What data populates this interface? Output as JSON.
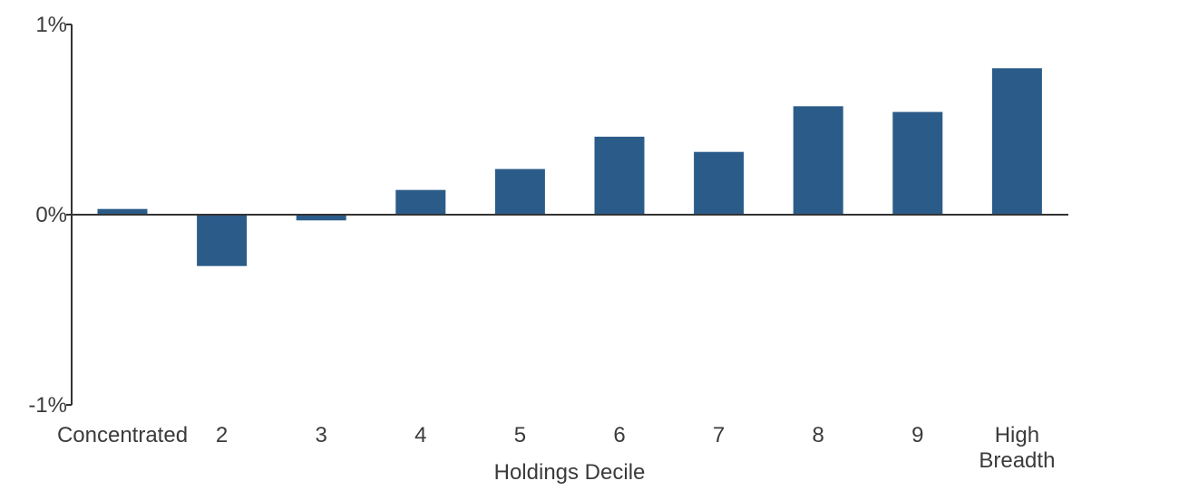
{
  "chart_data": {
    "type": "bar",
    "title": "",
    "xlabel": "Holdings Decile",
    "ylabel": "",
    "categories": [
      [
        "Concentrated"
      ],
      [
        "2"
      ],
      [
        "3"
      ],
      [
        "4"
      ],
      [
        "5"
      ],
      [
        "6"
      ],
      [
        "7"
      ],
      [
        "8"
      ],
      [
        "9"
      ],
      [
        "High",
        "Breadth"
      ]
    ],
    "values": [
      0.03,
      -0.27,
      -0.03,
      0.13,
      0.24,
      0.41,
      0.33,
      0.57,
      0.54,
      0.77
    ],
    "ylim": [
      -1,
      1
    ],
    "yticks": [
      {
        "value": 1,
        "label": "1%"
      },
      {
        "value": 0,
        "label": "0%"
      },
      {
        "value": -1,
        "label": "-1%"
      }
    ],
    "grid": false,
    "legend": "none",
    "bar_color": "#2b5c89"
  }
}
